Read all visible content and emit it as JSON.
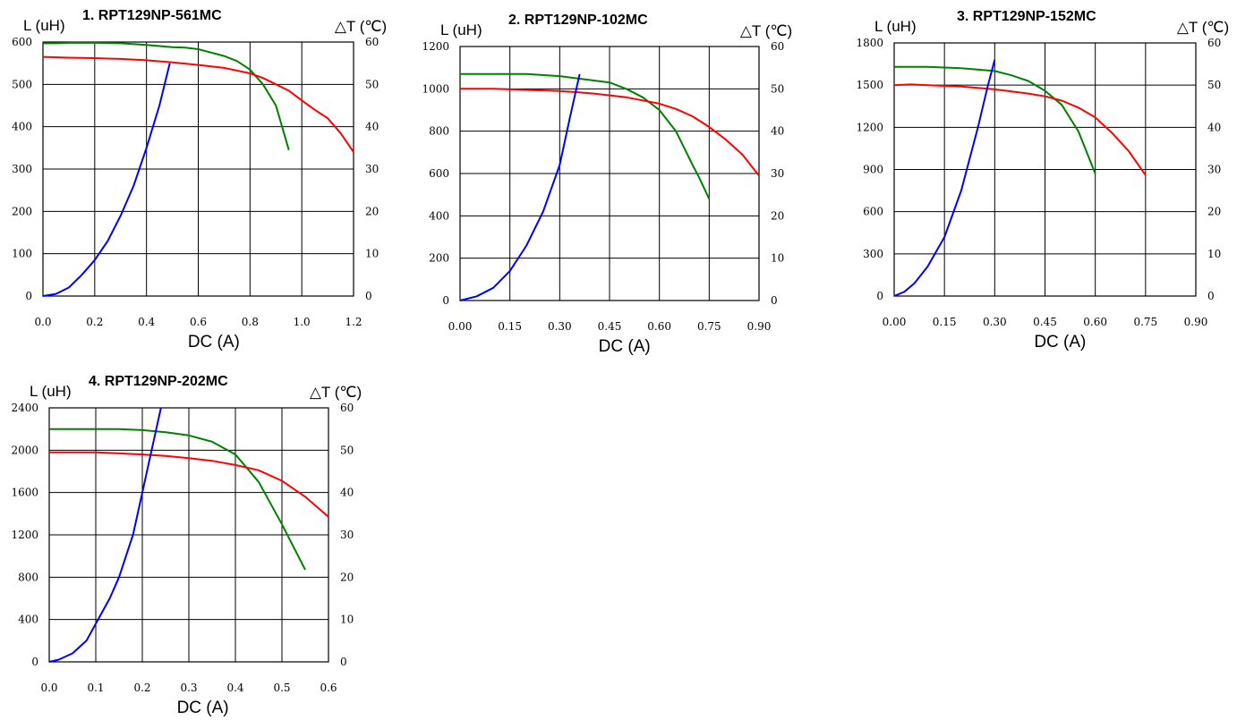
{
  "chart_data": [
    {
      "type": "line",
      "title": "1. RPT129NP-561MC",
      "ylabel": "L (uH)",
      "y2label": "△T (℃)",
      "xlabel": "DC (A)",
      "xlim": [
        0,
        1.2
      ],
      "xticks": [
        "0.0",
        "0.2",
        "0.4",
        "0.6",
        "0.8",
        "1.0",
        "1.2"
      ],
      "ylim": [
        0,
        600
      ],
      "yticks": [
        "0",
        "100",
        "200",
        "300",
        "400",
        "500",
        "600"
      ],
      "y2lim": [
        0,
        60
      ],
      "y2ticks": [
        "0",
        "10",
        "20",
        "30",
        "40",
        "50",
        "60"
      ],
      "grid": true,
      "series": [
        {
          "color": "#008000",
          "axis": "left",
          "x": [
            0,
            0.05,
            0.1,
            0.2,
            0.3,
            0.4,
            0.5,
            0.55,
            0.6,
            0.65,
            0.7,
            0.75,
            0.8,
            0.85,
            0.9,
            0.95
          ],
          "y": [
            597,
            597,
            598,
            598,
            597,
            593,
            588,
            587,
            583,
            575,
            567,
            555,
            535,
            500,
            450,
            345
          ]
        },
        {
          "color": "#ff0000",
          "axis": "left",
          "x": [
            0,
            0.1,
            0.2,
            0.3,
            0.4,
            0.5,
            0.6,
            0.7,
            0.8,
            0.85,
            0.9,
            0.95,
            1.0,
            1.05,
            1.1,
            1.15,
            1.2
          ],
          "y": [
            565,
            563,
            562,
            560,
            557,
            552,
            546,
            539,
            526,
            515,
            500,
            485,
            462,
            440,
            420,
            385,
            340
          ]
        },
        {
          "color": "#0000ff",
          "axis": "right",
          "x": [
            0,
            0.05,
            0.1,
            0.15,
            0.2,
            0.25,
            0.3,
            0.35,
            0.4,
            0.45,
            0.49
          ],
          "y": [
            0,
            0.5,
            2,
            5,
            8.5,
            13,
            19,
            26,
            35,
            45,
            55
          ]
        }
      ]
    },
    {
      "type": "line",
      "title": "2. RPT129NP-102MC",
      "ylabel": "L (uH)",
      "y2label": "△T (℃)",
      "xlabel": "DC (A)",
      "xlim": [
        0,
        0.9
      ],
      "xticks": [
        "0.00",
        "0.15",
        "0.30",
        "0.45",
        "0.60",
        "0.75",
        "0.90"
      ],
      "ylim": [
        0,
        1200
      ],
      "yticks": [
        "0",
        "200",
        "400",
        "600",
        "800",
        "1000",
        "1200"
      ],
      "y2lim": [
        0,
        60
      ],
      "y2ticks": [
        "0",
        "10",
        "20",
        "30",
        "40",
        "50",
        "60"
      ],
      "grid": true,
      "series": [
        {
          "color": "#008000",
          "axis": "left",
          "x": [
            0,
            0.1,
            0.2,
            0.3,
            0.4,
            0.45,
            0.5,
            0.55,
            0.6,
            0.65,
            0.7,
            0.72,
            0.75
          ],
          "y": [
            1070,
            1070,
            1070,
            1060,
            1040,
            1030,
            1000,
            960,
            900,
            800,
            640,
            580,
            480
          ]
        },
        {
          "color": "#ff0000",
          "axis": "left",
          "x": [
            0,
            0.1,
            0.2,
            0.3,
            0.4,
            0.5,
            0.55,
            0.6,
            0.65,
            0.7,
            0.75,
            0.8,
            0.85,
            0.9
          ],
          "y": [
            1000,
            1000,
            995,
            990,
            978,
            960,
            945,
            930,
            905,
            870,
            820,
            760,
            690,
            590
          ]
        },
        {
          "color": "#0000ff",
          "axis": "right",
          "x": [
            0,
            0.05,
            0.1,
            0.15,
            0.2,
            0.25,
            0.3,
            0.33,
            0.36
          ],
          "y": [
            0,
            1,
            3,
            7,
            13,
            21,
            32,
            43,
            53.5
          ]
        }
      ]
    },
    {
      "type": "line",
      "title": "3. RPT129NP-152MC",
      "ylabel": "L (uH)",
      "y2label": "△T (℃)",
      "xlabel": "DC (A)",
      "xlim": [
        0,
        0.9
      ],
      "xticks": [
        "0.00",
        "0.15",
        "0.30",
        "0.45",
        "0.60",
        "0.75",
        "0.90"
      ],
      "ylim": [
        0,
        1800
      ],
      "yticks": [
        "0",
        "300",
        "600",
        "900",
        "1200",
        "1500",
        "1800"
      ],
      "y2lim": [
        0,
        60
      ],
      "y2ticks": [
        "0",
        "10",
        "20",
        "30",
        "40",
        "50",
        "60"
      ],
      "grid": true,
      "series": [
        {
          "color": "#008000",
          "axis": "left",
          "x": [
            0,
            0.1,
            0.2,
            0.3,
            0.35,
            0.4,
            0.45,
            0.5,
            0.55,
            0.6
          ],
          "y": [
            1630,
            1630,
            1620,
            1600,
            1570,
            1530,
            1460,
            1360,
            1170,
            870
          ]
        },
        {
          "color": "#ff0000",
          "axis": "left",
          "x": [
            0,
            0.05,
            0.1,
            0.2,
            0.3,
            0.4,
            0.45,
            0.5,
            0.55,
            0.6,
            0.65,
            0.7,
            0.75
          ],
          "y": [
            1500,
            1505,
            1500,
            1490,
            1470,
            1440,
            1420,
            1390,
            1340,
            1270,
            1160,
            1030,
            860
          ]
        },
        {
          "color": "#0000ff",
          "axis": "right",
          "x": [
            0,
            0.03,
            0.06,
            0.1,
            0.15,
            0.2,
            0.25,
            0.28,
            0.3
          ],
          "y": [
            0,
            1,
            3,
            7,
            14,
            25,
            40,
            50,
            56
          ]
        }
      ]
    },
    {
      "type": "line",
      "title": "4. RPT129NP-202MC",
      "ylabel": "L (uH)",
      "y2label": "△T (℃)",
      "xlabel": "DC (A)",
      "xlim": [
        0,
        0.6
      ],
      "xticks": [
        "0.0",
        "0.1",
        "0.2",
        "0.3",
        "0.4",
        "0.5",
        "0.6"
      ],
      "ylim": [
        0,
        2400
      ],
      "yticks": [
        "0",
        "400",
        "800",
        "1200",
        "1600",
        "2000",
        "2400"
      ],
      "y2lim": [
        0,
        60
      ],
      "y2ticks": [
        "0",
        "10",
        "20",
        "30",
        "40",
        "50",
        "60"
      ],
      "grid": true,
      "series": [
        {
          "color": "#008000",
          "axis": "left",
          "x": [
            0,
            0.1,
            0.15,
            0.2,
            0.25,
            0.3,
            0.35,
            0.4,
            0.45,
            0.5,
            0.55
          ],
          "y": [
            2200,
            2200,
            2200,
            2190,
            2170,
            2140,
            2080,
            1960,
            1700,
            1300,
            870
          ]
        },
        {
          "color": "#ff0000",
          "axis": "left",
          "x": [
            0,
            0.1,
            0.15,
            0.2,
            0.25,
            0.3,
            0.35,
            0.4,
            0.45,
            0.5,
            0.55,
            0.6
          ],
          "y": [
            1980,
            1980,
            1970,
            1960,
            1945,
            1925,
            1900,
            1860,
            1810,
            1710,
            1560,
            1370
          ]
        },
        {
          "color": "#0000ff",
          "axis": "right",
          "x": [
            0,
            0.02,
            0.05,
            0.08,
            0.1,
            0.13,
            0.15,
            0.18,
            0.2,
            0.22,
            0.24
          ],
          "y": [
            0,
            0.5,
            2,
            5,
            9,
            15,
            20,
            30,
            40,
            50,
            60
          ]
        }
      ]
    }
  ]
}
